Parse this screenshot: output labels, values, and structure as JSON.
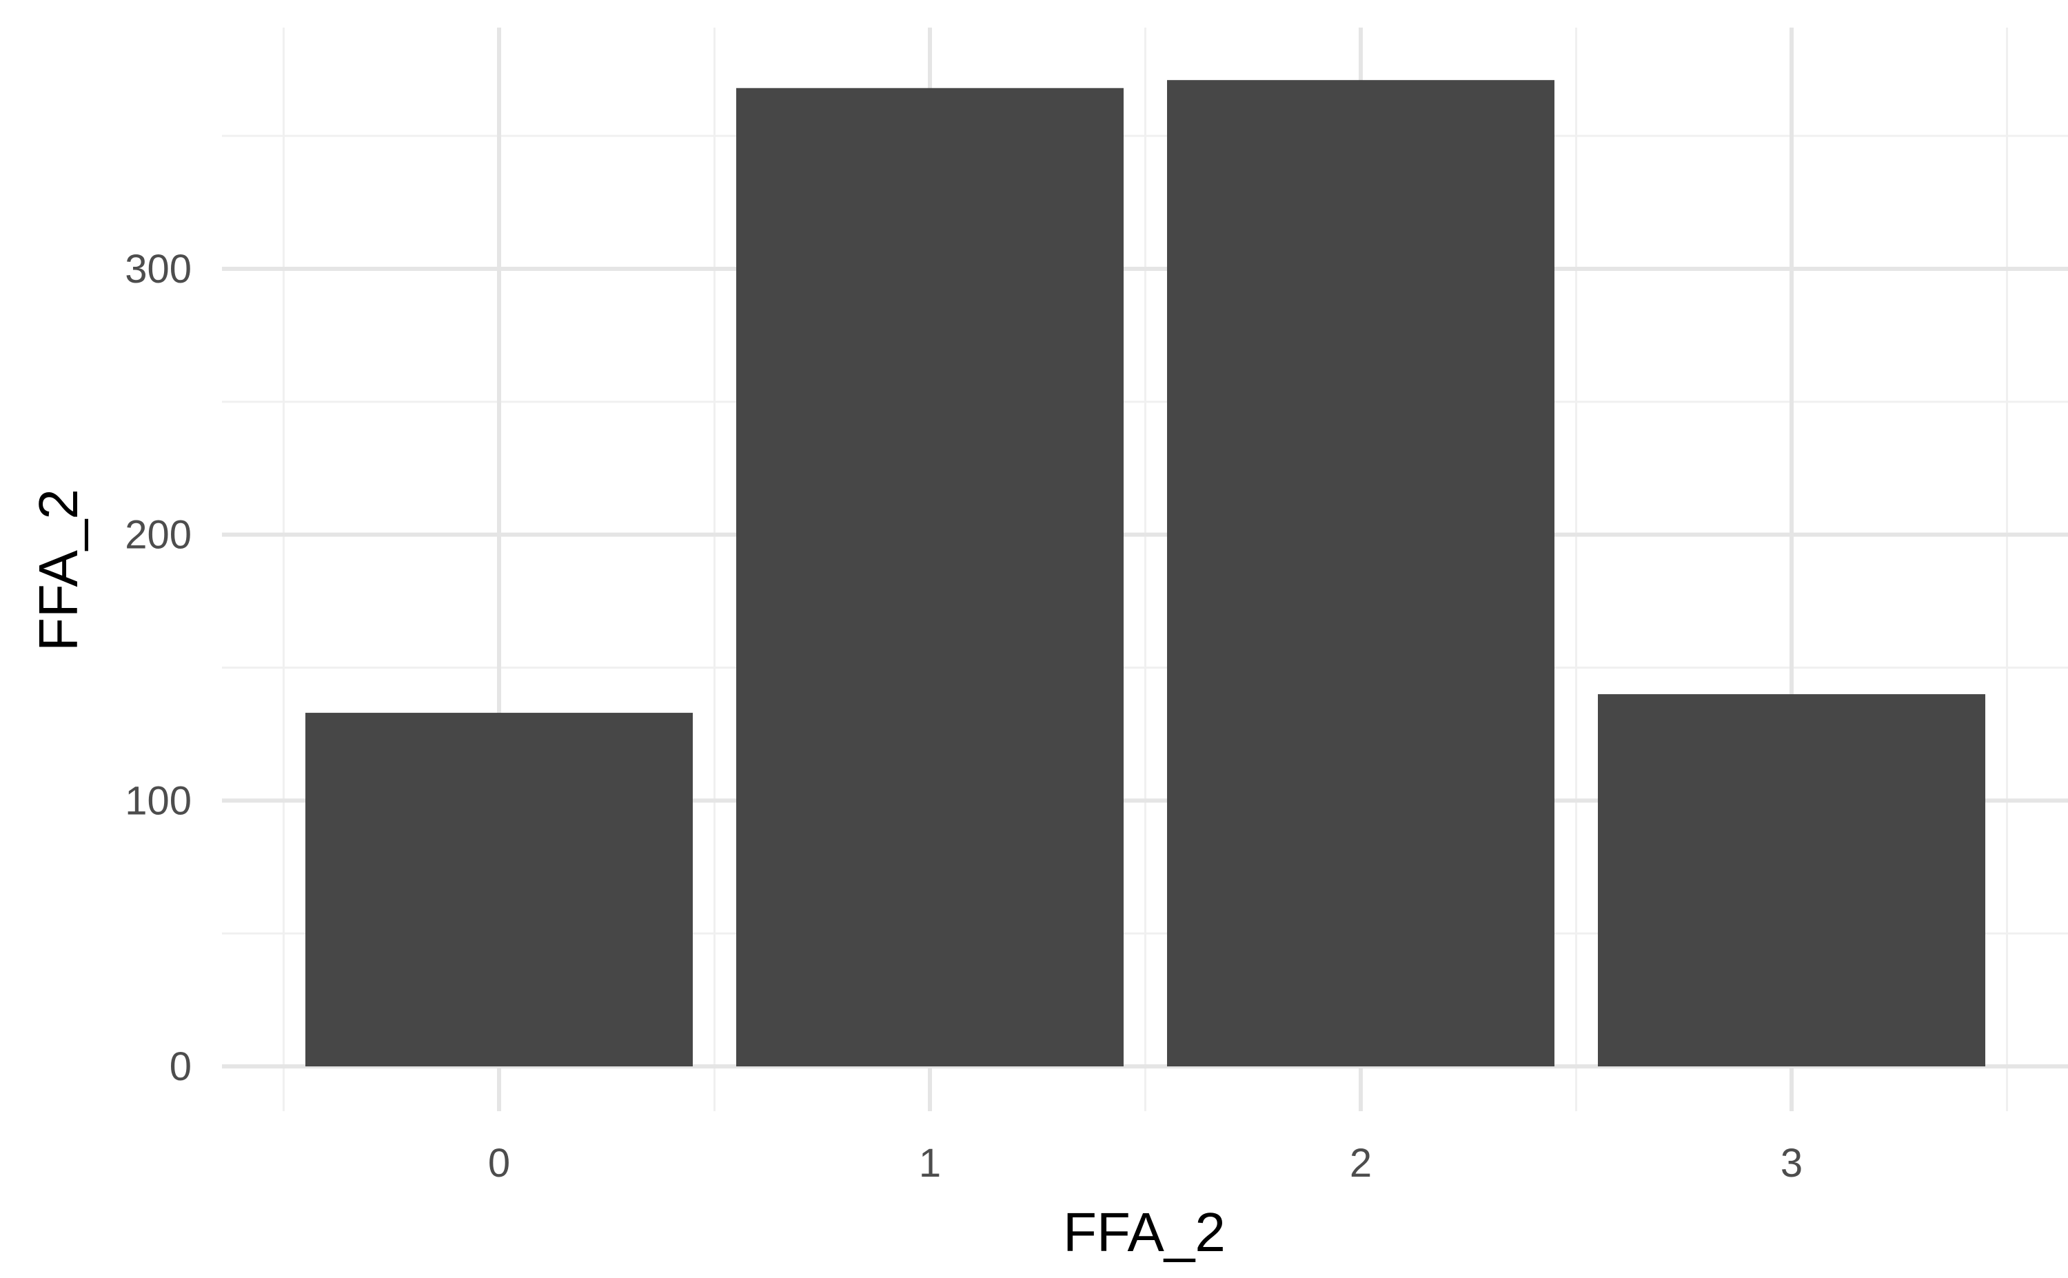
{
  "chart_data": {
    "type": "bar",
    "categories": [
      "0",
      "1",
      "2",
      "3"
    ],
    "values": [
      133,
      368,
      371,
      140
    ],
    "title": "",
    "xlabel": "FFA_2",
    "ylabel": "FFA_2",
    "ylim": [
      0,
      380
    ],
    "y_ticks": [
      0,
      100,
      200,
      300
    ],
    "y_minor_ticks": [
      50,
      150,
      250,
      350
    ],
    "grid": true,
    "legend": "none",
    "colors": {
      "bar": "#474747",
      "grid_major": "#e5e5e5",
      "grid_minor": "#f0f0f0",
      "background": "#ffffff"
    }
  }
}
